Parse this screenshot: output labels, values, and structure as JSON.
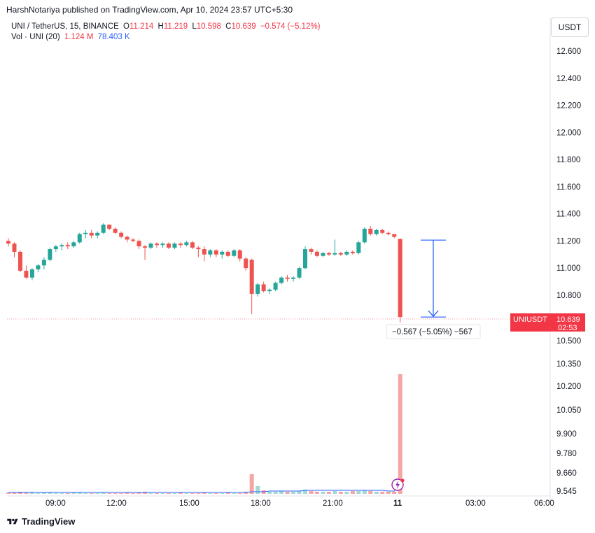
{
  "header": {
    "publisher_line": "HarshNotariya published on TradingView.com, Apr 10, 2024 23:57 UTC+5:30"
  },
  "legend": {
    "symbol": "UNI / TetherUS, 15, BINANCE",
    "o_label": "O",
    "o_value": "11.214",
    "h_label": "H",
    "h_value": "11.219",
    "l_label": "L",
    "l_value": "10.598",
    "c_label": "C",
    "c_value": "10.639",
    "change": "−0.574 (−5.12%)",
    "vol_label": "Vol · UNI (20)",
    "vol_value": "1.124 M",
    "vol_ma": "78.403 K"
  },
  "currency_button": "USDT",
  "price_axis": {
    "upper_ticks": [
      "12.600",
      "12.400",
      "12.200",
      "12.000",
      "11.800",
      "11.600",
      "11.400",
      "11.200",
      "11.000",
      "10.800"
    ],
    "lower_ticks": [
      "10.500",
      "10.350",
      "10.200",
      "10.050",
      "9.900",
      "9.780",
      "9.660",
      "9.545"
    ]
  },
  "time_axis": {
    "ticks": [
      "09:00",
      "12:00",
      "15:00",
      "18:00",
      "21:00",
      "11",
      "03:00",
      "06:00"
    ]
  },
  "last_price_badge": {
    "symbol": "UNIUSDT",
    "price": "10.639",
    "countdown": "02:53"
  },
  "measure_label": "−0.567 (−5.05%) −567",
  "footer": {
    "brand": "TradingView"
  },
  "colors": {
    "up": "#26a69a",
    "down": "#ef5350",
    "vol_up": "#a3d9d4",
    "vol_down": "#f5a5a3",
    "measure": "#2962ff",
    "ma": "#2962ff"
  },
  "chart_data": {
    "type": "candlestick",
    "interval": "15m",
    "y_range": [
      10.5,
      12.7
    ],
    "ohlc": [
      [
        11.2,
        11.22,
        11.16,
        11.18
      ],
      [
        11.18,
        11.19,
        11.08,
        11.12
      ],
      [
        11.12,
        11.13,
        10.97,
        10.98
      ],
      [
        10.98,
        11.02,
        10.92,
        10.93
      ],
      [
        10.93,
        11.0,
        10.91,
        10.99
      ],
      [
        10.99,
        11.03,
        10.97,
        11.02
      ],
      [
        11.02,
        11.08,
        10.99,
        11.06
      ],
      [
        11.06,
        11.15,
        11.05,
        11.14
      ],
      [
        11.14,
        11.17,
        11.12,
        11.16
      ],
      [
        11.16,
        11.18,
        11.13,
        11.17
      ],
      [
        11.17,
        11.19,
        11.14,
        11.16
      ],
      [
        11.16,
        11.2,
        11.15,
        11.19
      ],
      [
        11.19,
        11.26,
        11.18,
        11.25
      ],
      [
        11.25,
        11.28,
        11.22,
        11.26
      ],
      [
        11.26,
        11.28,
        11.22,
        11.24
      ],
      [
        11.24,
        11.27,
        11.22,
        11.26
      ],
      [
        11.26,
        11.33,
        11.25,
        11.32
      ],
      [
        11.32,
        11.32,
        11.28,
        11.29
      ],
      [
        11.29,
        11.3,
        11.25,
        11.26
      ],
      [
        11.26,
        11.27,
        11.22,
        11.23
      ],
      [
        11.23,
        11.24,
        11.19,
        11.21
      ],
      [
        11.21,
        11.22,
        11.19,
        11.2
      ],
      [
        11.2,
        11.21,
        11.14,
        11.16
      ],
      [
        11.16,
        11.17,
        11.06,
        11.15
      ],
      [
        11.15,
        11.19,
        11.14,
        11.18
      ],
      [
        11.18,
        11.19,
        11.15,
        11.17
      ],
      [
        11.17,
        11.19,
        11.15,
        11.18
      ],
      [
        11.18,
        11.19,
        11.14,
        11.15
      ],
      [
        11.15,
        11.19,
        11.14,
        11.18
      ],
      [
        11.18,
        11.19,
        11.15,
        11.17
      ],
      [
        11.17,
        11.2,
        11.16,
        11.19
      ],
      [
        11.19,
        11.2,
        11.14,
        11.15
      ],
      [
        11.15,
        11.16,
        11.08,
        11.14
      ],
      [
        11.14,
        11.16,
        11.05,
        11.1
      ],
      [
        11.1,
        11.14,
        11.08,
        11.13
      ],
      [
        11.13,
        11.14,
        11.08,
        11.1
      ],
      [
        11.1,
        11.13,
        11.07,
        11.12
      ],
      [
        11.12,
        11.13,
        11.08,
        11.09
      ],
      [
        11.09,
        11.14,
        11.08,
        11.13
      ],
      [
        11.13,
        11.14,
        11.05,
        11.07
      ],
      [
        11.07,
        11.08,
        10.98,
        11.0
      ],
      [
        11.06,
        11.07,
        10.66,
        10.81
      ],
      [
        10.81,
        10.89,
        10.79,
        10.88
      ],
      [
        10.88,
        10.9,
        10.82,
        10.83
      ],
      [
        10.83,
        10.85,
        10.81,
        10.84
      ],
      [
        10.84,
        10.9,
        10.83,
        10.89
      ],
      [
        10.89,
        10.94,
        10.88,
        10.93
      ],
      [
        10.93,
        10.95,
        10.9,
        10.92
      ],
      [
        10.92,
        10.94,
        10.9,
        10.93
      ],
      [
        10.93,
        11.01,
        10.92,
        11.0
      ],
      [
        11.0,
        11.16,
        10.99,
        11.14
      ],
      [
        11.14,
        11.15,
        11.1,
        11.12
      ],
      [
        11.12,
        11.13,
        11.08,
        11.09
      ],
      [
        11.09,
        11.12,
        11.08,
        11.11
      ],
      [
        11.11,
        11.12,
        11.09,
        11.1
      ],
      [
        11.1,
        11.21,
        11.09,
        11.11
      ],
      [
        11.11,
        11.12,
        11.09,
        11.1
      ],
      [
        11.1,
        11.13,
        11.09,
        11.12
      ],
      [
        11.12,
        11.13,
        11.1,
        11.11
      ],
      [
        11.11,
        11.2,
        11.1,
        11.19
      ],
      [
        11.19,
        11.3,
        11.18,
        11.29
      ],
      [
        11.29,
        11.31,
        11.24,
        11.25
      ],
      [
        11.25,
        11.29,
        11.24,
        11.28
      ],
      [
        11.28,
        11.29,
        11.25,
        11.26
      ],
      [
        11.26,
        11.27,
        11.24,
        11.25
      ],
      [
        11.25,
        11.25,
        11.22,
        11.23
      ],
      [
        11.214,
        11.219,
        10.598,
        10.639
      ]
    ],
    "volume": [
      2,
      2,
      3,
      2,
      2,
      1,
      2,
      2,
      1,
      1,
      1,
      2,
      2,
      1,
      1,
      1,
      2,
      1,
      1,
      1,
      2,
      1,
      2,
      3,
      1,
      1,
      1,
      1,
      1,
      2,
      1,
      1,
      1,
      2,
      1,
      1,
      1,
      2,
      1,
      1,
      3,
      28,
      11,
      5,
      3,
      3,
      4,
      3,
      3,
      4,
      6,
      4,
      3,
      3,
      3,
      4,
      3,
      3,
      4,
      4,
      5,
      4,
      3,
      3,
      3,
      3,
      170
    ],
    "volume_ma": [
      2,
      2,
      2,
      2,
      2,
      2,
      2,
      2,
      2,
      2,
      2,
      2,
      2,
      2,
      2,
      2,
      2,
      2,
      2,
      2,
      2,
      2,
      2,
      2,
      2,
      2,
      2,
      2,
      2,
      2,
      2,
      2,
      2,
      2,
      2,
      2,
      2,
      2,
      2,
      2,
      2,
      3,
      3,
      3,
      4,
      4,
      4,
      4,
      4,
      4,
      5,
      5,
      5,
      5,
      5,
      5,
      5,
      5,
      5,
      5,
      5,
      5,
      5,
      5,
      4,
      4,
      10
    ],
    "measure": {
      "from": 11.206,
      "to": 10.639
    }
  }
}
